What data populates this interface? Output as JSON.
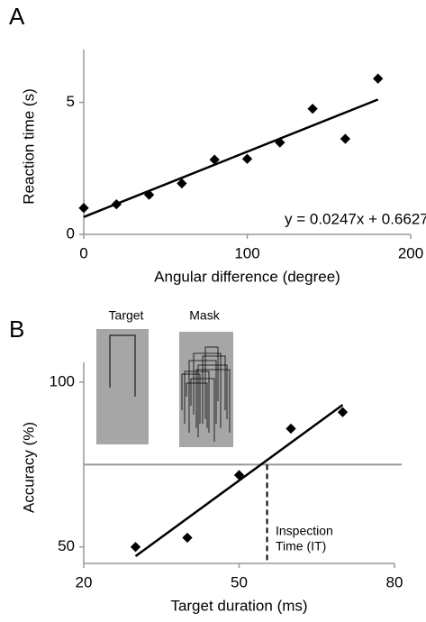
{
  "chart_data": [
    {
      "type": "scatter",
      "label": "A",
      "xlabel": "Angular difference (degree)",
      "ylabel": "Reaction time (s)",
      "x": [
        0,
        20,
        40,
        60,
        80,
        100,
        120,
        140,
        160,
        180
      ],
      "values": [
        1.0,
        1.14,
        1.5,
        1.93,
        2.83,
        2.86,
        3.48,
        4.76,
        3.62,
        5.9
      ],
      "color": "#000000",
      "fit": {
        "x": [
          0,
          180
        ],
        "values": [
          0.66,
          5.11
        ]
      },
      "annotation": "y = 0.0247x + 0.6627",
      "xlim": [
        0,
        200
      ],
      "ylim": [
        0,
        7
      ],
      "xticks": [
        0,
        100,
        200
      ],
      "yticks": [
        0,
        5
      ]
    },
    {
      "type": "scatter",
      "label": "B",
      "xlabel": "Target duration (ms)",
      "ylabel": "Accuracy (%)",
      "x": [
        30,
        40,
        50,
        60,
        70
      ],
      "values": [
        50,
        52.8,
        71.8,
        85.9,
        90.9
      ],
      "color": "#000000",
      "fit": {
        "x": [
          30,
          70
        ],
        "values": [
          47.2,
          93.1
        ]
      },
      "hline": 75,
      "vline": 55.4,
      "annotation": [
        "Inspection",
        "Time (IT)"
      ],
      "insets": [
        "Target",
        "Mask"
      ],
      "xlim": [
        20,
        80
      ],
      "ylim": [
        45,
        106
      ],
      "xticks": [
        20,
        50,
        80
      ],
      "yticks": [
        50,
        100
      ]
    }
  ]
}
